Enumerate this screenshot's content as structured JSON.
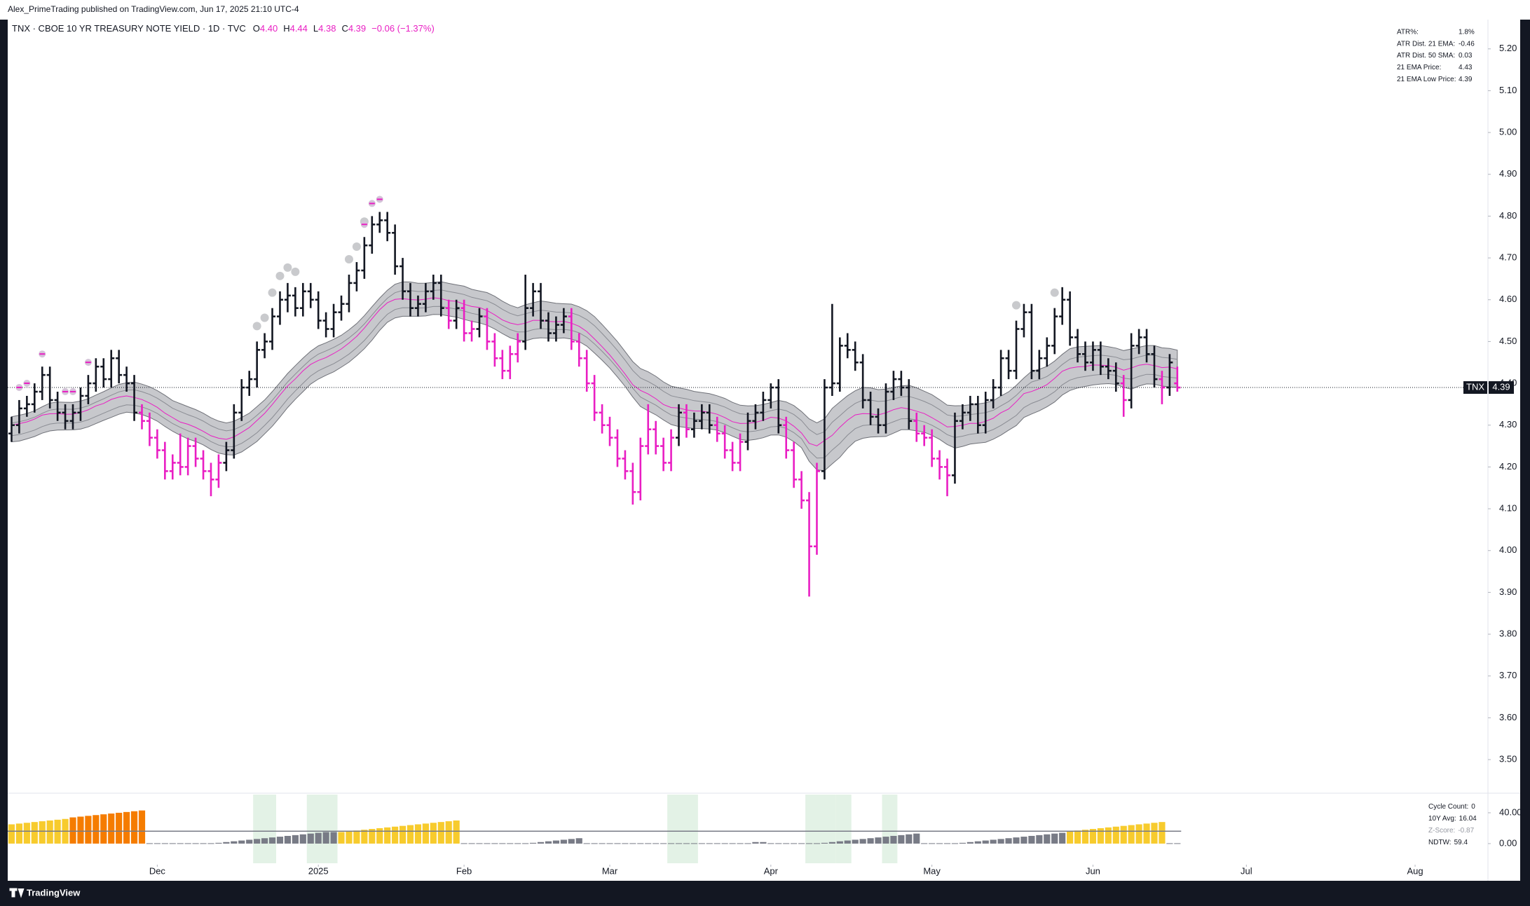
{
  "header": {
    "publisher": "Alex_PrimeTrading published on TradingView.com, Jun 17, 2025 21:10 UTC-4"
  },
  "footer": {
    "brand": "TradingView"
  },
  "stats_table": [
    [
      "ATR%:",
      "1.8%"
    ],
    [
      "ATR Dist. 21 EMA:",
      "-0.46"
    ],
    [
      "ATR Dist. 50 SMA:",
      "0.03"
    ],
    [
      "21 EMA Price:",
      "4.43"
    ],
    [
      "21 EMA Low Price:",
      "4.39"
    ]
  ],
  "chart_data": [
    {
      "type": "ohlc",
      "title": "TNX · CBOE 10 YR TREASURY NOTE YIELD · 1D · TVC",
      "symbol": "TNX",
      "legend_keys": [
        "O",
        "H",
        "L",
        "C"
      ],
      "legend_values": [
        "4.40",
        "4.44",
        "4.38",
        "4.39"
      ],
      "change_label": "−0.06 (−1.37%)",
      "up_color": "#131722",
      "down_color": "#e91ec3",
      "band_color": "#c7c8cc",
      "ema_period": 21,
      "xlim": [
        -0.5,
        192.5
      ],
      "xticks": [
        {
          "value": 19,
          "label": "Dec"
        },
        {
          "value": 40,
          "label": "2025"
        },
        {
          "value": 59,
          "label": "Feb"
        },
        {
          "value": 78,
          "label": "Mar"
        },
        {
          "value": 99,
          "label": "Apr"
        },
        {
          "value": 120,
          "label": "May"
        },
        {
          "value": 141,
          "label": "Jun"
        },
        {
          "value": 161,
          "label": "Jul"
        },
        {
          "value": 183,
          "label": "Aug"
        }
      ],
      "ylim": [
        3.423,
        5.27
      ],
      "yticks": [
        {
          "value": 3.5,
          "label": "3.50"
        },
        {
          "value": 3.6,
          "label": "3.60"
        },
        {
          "value": 3.7,
          "label": "3.70"
        },
        {
          "value": 3.8,
          "label": "3.80"
        },
        {
          "value": 3.9,
          "label": "3.90"
        },
        {
          "value": 4.0,
          "label": "4.00"
        },
        {
          "value": 4.1,
          "label": "4.10"
        },
        {
          "value": 4.2,
          "label": "4.20"
        },
        {
          "value": 4.3,
          "label": "4.30"
        },
        {
          "value": 4.4,
          "label": "4.40"
        },
        {
          "value": 4.5,
          "label": "4.50"
        },
        {
          "value": 4.6,
          "label": "4.60"
        },
        {
          "value": 4.7,
          "label": "4.70"
        },
        {
          "value": 4.8,
          "label": "4.80"
        },
        {
          "value": 4.9,
          "label": "4.90"
        },
        {
          "value": 5.0,
          "label": "5.00"
        },
        {
          "value": 5.1,
          "label": "5.10"
        },
        {
          "value": 5.2,
          "label": "5.20"
        }
      ],
      "gray_dots": [
        32,
        33,
        34,
        35,
        36,
        37,
        44,
        45,
        46,
        131,
        136
      ],
      "pink_dots": [
        1,
        2,
        4,
        7,
        8,
        10,
        46,
        47,
        48
      ],
      "ohlc": [
        [
          4.28,
          4.32,
          4.26,
          4.3
        ],
        [
          4.3,
          4.36,
          4.28,
          4.34
        ],
        [
          4.34,
          4.37,
          4.32,
          4.35
        ],
        [
          4.35,
          4.4,
          4.33,
          4.38
        ],
        [
          4.38,
          4.44,
          4.36,
          4.42
        ],
        [
          4.42,
          4.44,
          4.34,
          4.36
        ],
        [
          4.36,
          4.38,
          4.31,
          4.33
        ],
        [
          4.33,
          4.35,
          4.29,
          4.31
        ],
        [
          4.31,
          4.35,
          4.29,
          4.33
        ],
        [
          4.33,
          4.39,
          4.31,
          4.37
        ],
        [
          4.37,
          4.42,
          4.35,
          4.4
        ],
        [
          4.4,
          4.46,
          4.38,
          4.44
        ],
        [
          4.44,
          4.46,
          4.39,
          4.41
        ],
        [
          4.41,
          4.48,
          4.39,
          4.46
        ],
        [
          4.46,
          4.48,
          4.4,
          4.42
        ],
        [
          4.42,
          4.44,
          4.38,
          4.4
        ],
        [
          4.4,
          4.42,
          4.31,
          4.33
        ],
        [
          4.33,
          4.35,
          4.29,
          4.31
        ],
        [
          4.31,
          4.33,
          4.25,
          4.27
        ],
        [
          4.27,
          4.29,
          4.22,
          4.24
        ],
        [
          4.24,
          4.26,
          4.17,
          4.19
        ],
        [
          4.19,
          4.23,
          4.17,
          4.21
        ],
        [
          4.21,
          4.28,
          4.18,
          4.2
        ],
        [
          4.2,
          4.27,
          4.18,
          4.25
        ],
        [
          4.25,
          4.27,
          4.2,
          4.22
        ],
        [
          4.22,
          4.24,
          4.17,
          4.19
        ],
        [
          4.19,
          4.21,
          4.13,
          4.17
        ],
        [
          4.17,
          4.23,
          4.15,
          4.21
        ],
        [
          4.21,
          4.26,
          4.19,
          4.24
        ],
        [
          4.24,
          4.35,
          4.22,
          4.33
        ],
        [
          4.33,
          4.41,
          4.31,
          4.39
        ],
        [
          4.39,
          4.43,
          4.37,
          4.41
        ],
        [
          4.41,
          4.5,
          4.39,
          4.48
        ],
        [
          4.48,
          4.52,
          4.46,
          4.5
        ],
        [
          4.5,
          4.58,
          4.48,
          4.56
        ],
        [
          4.56,
          4.62,
          4.54,
          4.6
        ],
        [
          4.6,
          4.64,
          4.57,
          4.61
        ],
        [
          4.61,
          4.63,
          4.56,
          4.58
        ],
        [
          4.58,
          4.64,
          4.56,
          4.62
        ],
        [
          4.62,
          4.64,
          4.58,
          4.6
        ],
        [
          4.6,
          4.62,
          4.53,
          4.55
        ],
        [
          4.55,
          4.57,
          4.51,
          4.53
        ],
        [
          4.53,
          4.59,
          4.51,
          4.57
        ],
        [
          4.57,
          4.61,
          4.55,
          4.59
        ],
        [
          4.59,
          4.66,
          4.57,
          4.64
        ],
        [
          4.64,
          4.69,
          4.62,
          4.67
        ],
        [
          4.67,
          4.75,
          4.65,
          4.73
        ],
        [
          4.73,
          4.8,
          4.71,
          4.78
        ],
        [
          4.78,
          4.81,
          4.76,
          4.79
        ],
        [
          4.79,
          4.81,
          4.74,
          4.76
        ],
        [
          4.76,
          4.78,
          4.66,
          4.68
        ],
        [
          4.68,
          4.7,
          4.6,
          4.62
        ],
        [
          4.62,
          4.64,
          4.56,
          4.58
        ],
        [
          4.58,
          4.61,
          4.56,
          4.59
        ],
        [
          4.59,
          4.64,
          4.57,
          4.62
        ],
        [
          4.62,
          4.66,
          4.6,
          4.64
        ],
        [
          4.64,
          4.66,
          4.56,
          4.58
        ],
        [
          4.58,
          4.6,
          4.53,
          4.55
        ],
        [
          4.55,
          4.6,
          4.53,
          4.58
        ],
        [
          4.58,
          4.6,
          4.5,
          4.52
        ],
        [
          4.52,
          4.55,
          4.5,
          4.53
        ],
        [
          4.53,
          4.58,
          4.51,
          4.56
        ],
        [
          4.56,
          4.58,
          4.48,
          4.5
        ],
        [
          4.5,
          4.52,
          4.44,
          4.46
        ],
        [
          4.46,
          4.48,
          4.41,
          4.43
        ],
        [
          4.43,
          4.49,
          4.41,
          4.47
        ],
        [
          4.47,
          4.52,
          4.45,
          4.5
        ],
        [
          4.5,
          4.66,
          4.48,
          4.58
        ],
        [
          4.58,
          4.64,
          4.56,
          4.62
        ],
        [
          4.62,
          4.64,
          4.53,
          4.55
        ],
        [
          4.55,
          4.57,
          4.5,
          4.52
        ],
        [
          4.52,
          4.56,
          4.5,
          4.54
        ],
        [
          4.54,
          4.58,
          4.52,
          4.56
        ],
        [
          4.56,
          4.58,
          4.48,
          4.5
        ],
        [
          4.5,
          4.52,
          4.44,
          4.46
        ],
        [
          4.46,
          4.48,
          4.38,
          4.4
        ],
        [
          4.4,
          4.42,
          4.31,
          4.33
        ],
        [
          4.33,
          4.35,
          4.28,
          4.3
        ],
        [
          4.3,
          4.32,
          4.25,
          4.27
        ],
        [
          4.27,
          4.29,
          4.2,
          4.22
        ],
        [
          4.22,
          4.24,
          4.17,
          4.19
        ],
        [
          4.19,
          4.21,
          4.11,
          4.14
        ],
        [
          4.14,
          4.27,
          4.12,
          4.25
        ],
        [
          4.25,
          4.35,
          4.23,
          4.29
        ],
        [
          4.29,
          4.31,
          4.23,
          4.25
        ],
        [
          4.25,
          4.27,
          4.19,
          4.21
        ],
        [
          4.21,
          4.29,
          4.19,
          4.27
        ],
        [
          4.27,
          4.35,
          4.25,
          4.33
        ],
        [
          4.33,
          4.35,
          4.27,
          4.29
        ],
        [
          4.29,
          4.33,
          4.27,
          4.31
        ],
        [
          4.31,
          4.35,
          4.29,
          4.33
        ],
        [
          4.33,
          4.35,
          4.28,
          4.3
        ],
        [
          4.3,
          4.32,
          4.26,
          4.28
        ],
        [
          4.28,
          4.3,
          4.22,
          4.24
        ],
        [
          4.24,
          4.26,
          4.19,
          4.21
        ],
        [
          4.21,
          4.28,
          4.19,
          4.26
        ],
        [
          4.26,
          4.33,
          4.24,
          4.31
        ],
        [
          4.31,
          4.35,
          4.29,
          4.33
        ],
        [
          4.33,
          4.38,
          4.31,
          4.36
        ],
        [
          4.36,
          4.4,
          4.34,
          4.39
        ],
        [
          4.39,
          4.41,
          4.28,
          4.3
        ],
        [
          4.3,
          4.32,
          4.22,
          4.24
        ],
        [
          4.24,
          4.26,
          4.15,
          4.17
        ],
        [
          4.17,
          4.19,
          4.1,
          4.12
        ],
        [
          4.12,
          4.14,
          3.89,
          4.01
        ],
        [
          4.01,
          4.21,
          3.99,
          4.19
        ],
        [
          4.19,
          4.41,
          4.17,
          4.39
        ],
        [
          4.39,
          4.59,
          4.37,
          4.4
        ],
        [
          4.4,
          4.51,
          4.38,
          4.49
        ],
        [
          4.49,
          4.52,
          4.46,
          4.48
        ],
        [
          4.48,
          4.5,
          4.43,
          4.45
        ],
        [
          4.45,
          4.47,
          4.34,
          4.36
        ],
        [
          4.36,
          4.38,
          4.3,
          4.32
        ],
        [
          4.32,
          4.34,
          4.28,
          4.3
        ],
        [
          4.3,
          4.4,
          4.28,
          4.38
        ],
        [
          4.38,
          4.43,
          4.36,
          4.41
        ],
        [
          4.41,
          4.43,
          4.37,
          4.39
        ],
        [
          4.39,
          4.41,
          4.29,
          4.31
        ],
        [
          4.31,
          4.33,
          4.26,
          4.28
        ],
        [
          4.28,
          4.3,
          4.25,
          4.27
        ],
        [
          4.27,
          4.29,
          4.2,
          4.22
        ],
        [
          4.22,
          4.24,
          4.17,
          4.2
        ],
        [
          4.2,
          4.22,
          4.13,
          4.18
        ],
        [
          4.18,
          4.33,
          4.16,
          4.31
        ],
        [
          4.31,
          4.35,
          4.29,
          4.33
        ],
        [
          4.33,
          4.37,
          4.31,
          4.35
        ],
        [
          4.35,
          4.37,
          4.28,
          4.3
        ],
        [
          4.3,
          4.38,
          4.28,
          4.36
        ],
        [
          4.36,
          4.41,
          4.34,
          4.39
        ],
        [
          4.39,
          4.48,
          4.37,
          4.46
        ],
        [
          4.46,
          4.48,
          4.41,
          4.43
        ],
        [
          4.43,
          4.55,
          4.41,
          4.53
        ],
        [
          4.53,
          4.59,
          4.51,
          4.57
        ],
        [
          4.57,
          4.59,
          4.41,
          4.43
        ],
        [
          4.43,
          4.48,
          4.41,
          4.46
        ],
        [
          4.46,
          4.51,
          4.44,
          4.49
        ],
        [
          4.49,
          4.58,
          4.47,
          4.56
        ],
        [
          4.56,
          4.63,
          4.54,
          4.6
        ],
        [
          4.6,
          4.62,
          4.49,
          4.51
        ],
        [
          4.51,
          4.53,
          4.45,
          4.47
        ],
        [
          4.47,
          4.5,
          4.43,
          4.45
        ],
        [
          4.45,
          4.5,
          4.43,
          4.48
        ],
        [
          4.48,
          4.5,
          4.42,
          4.44
        ],
        [
          4.44,
          4.46,
          4.41,
          4.43
        ],
        [
          4.43,
          4.45,
          4.38,
          4.4
        ],
        [
          4.4,
          4.42,
          4.32,
          4.36
        ],
        [
          4.36,
          4.52,
          4.34,
          4.49
        ],
        [
          4.49,
          4.53,
          4.47,
          4.51
        ],
        [
          4.51,
          4.53,
          4.45,
          4.47
        ],
        [
          4.47,
          4.49,
          4.39,
          4.41
        ],
        [
          4.41,
          4.43,
          4.35,
          4.39
        ],
        [
          4.39,
          4.47,
          4.37,
          4.45
        ],
        [
          4.4,
          4.44,
          4.38,
          4.39
        ]
      ]
    },
    {
      "type": "bar",
      "ylim": [
        -25.5,
        63.6
      ],
      "yticks": [
        {
          "value": 40,
          "label": "40.00"
        },
        {
          "value": 0,
          "label": "0.00"
        }
      ],
      "info": [
        {
          "label": "Cycle Count:",
          "value": 0
        },
        {
          "label": "10Y Avg:",
          "value": 16.04
        },
        {
          "label": "Z-Score:",
          "value": -0.87
        },
        {
          "label": "NDTW:",
          "value": 59.4
        }
      ],
      "avg_color": "#787b86",
      "highlight_color": "#e3f2e6",
      "highlights": [
        [
          32,
          34
        ],
        [
          39,
          42
        ],
        [
          86,
          89
        ],
        [
          104,
          107
        ],
        [
          108,
          109
        ],
        [
          114,
          115
        ]
      ],
      "color_runs": [
        [
          0,
          7,
          "#f7cb2d"
        ],
        [
          8,
          17,
          "#f57c00"
        ],
        [
          18,
          42,
          "#787b86"
        ],
        [
          43,
          58,
          "#f7cb2d"
        ],
        [
          59,
          137,
          "#787b86"
        ],
        [
          138,
          150,
          "#f7cb2d"
        ],
        [
          151,
          152,
          "#787b86"
        ]
      ],
      "values": [
        25,
        26,
        27,
        28,
        29,
        30,
        31,
        32,
        34,
        35,
        36,
        37,
        38,
        39,
        40,
        41,
        42,
        43,
        0.5,
        0.5,
        0.5,
        0.5,
        0.5,
        0.5,
        0.5,
        0.5,
        0.5,
        1,
        2,
        3,
        4,
        5,
        6,
        7,
        8,
        9,
        10,
        11,
        12,
        13,
        14,
        15,
        15,
        15,
        16,
        17,
        18,
        19,
        20,
        21,
        22,
        23,
        24,
        25,
        26,
        27,
        28,
        29,
        30,
        0.5,
        0.5,
        0.5,
        0.5,
        0.5,
        0.5,
        0.5,
        0.5,
        0.5,
        1,
        2,
        3,
        4,
        5,
        6,
        7,
        0.5,
        0.5,
        0.5,
        0.5,
        0.5,
        0.5,
        0.5,
        0.5,
        0.5,
        0.5,
        0.5,
        0.5,
        0.5,
        0.5,
        0.5,
        0.5,
        0.5,
        0.5,
        0.5,
        0.5,
        0.5,
        0.5,
        2,
        2,
        0.5,
        0.5,
        0.5,
        0.5,
        0.5,
        0.5,
        0.5,
        1,
        2,
        3,
        4,
        5,
        6,
        7,
        8,
        9,
        10,
        11,
        12,
        13,
        0.5,
        0.5,
        0.5,
        0.5,
        0.5,
        1,
        2,
        3,
        4,
        5,
        6,
        7,
        8,
        9,
        10,
        11,
        12,
        13,
        14,
        16,
        17,
        18,
        19,
        20,
        21,
        22,
        23,
        24,
        25,
        26,
        27,
        28,
        0.5,
        0.5
      ]
    }
  ]
}
